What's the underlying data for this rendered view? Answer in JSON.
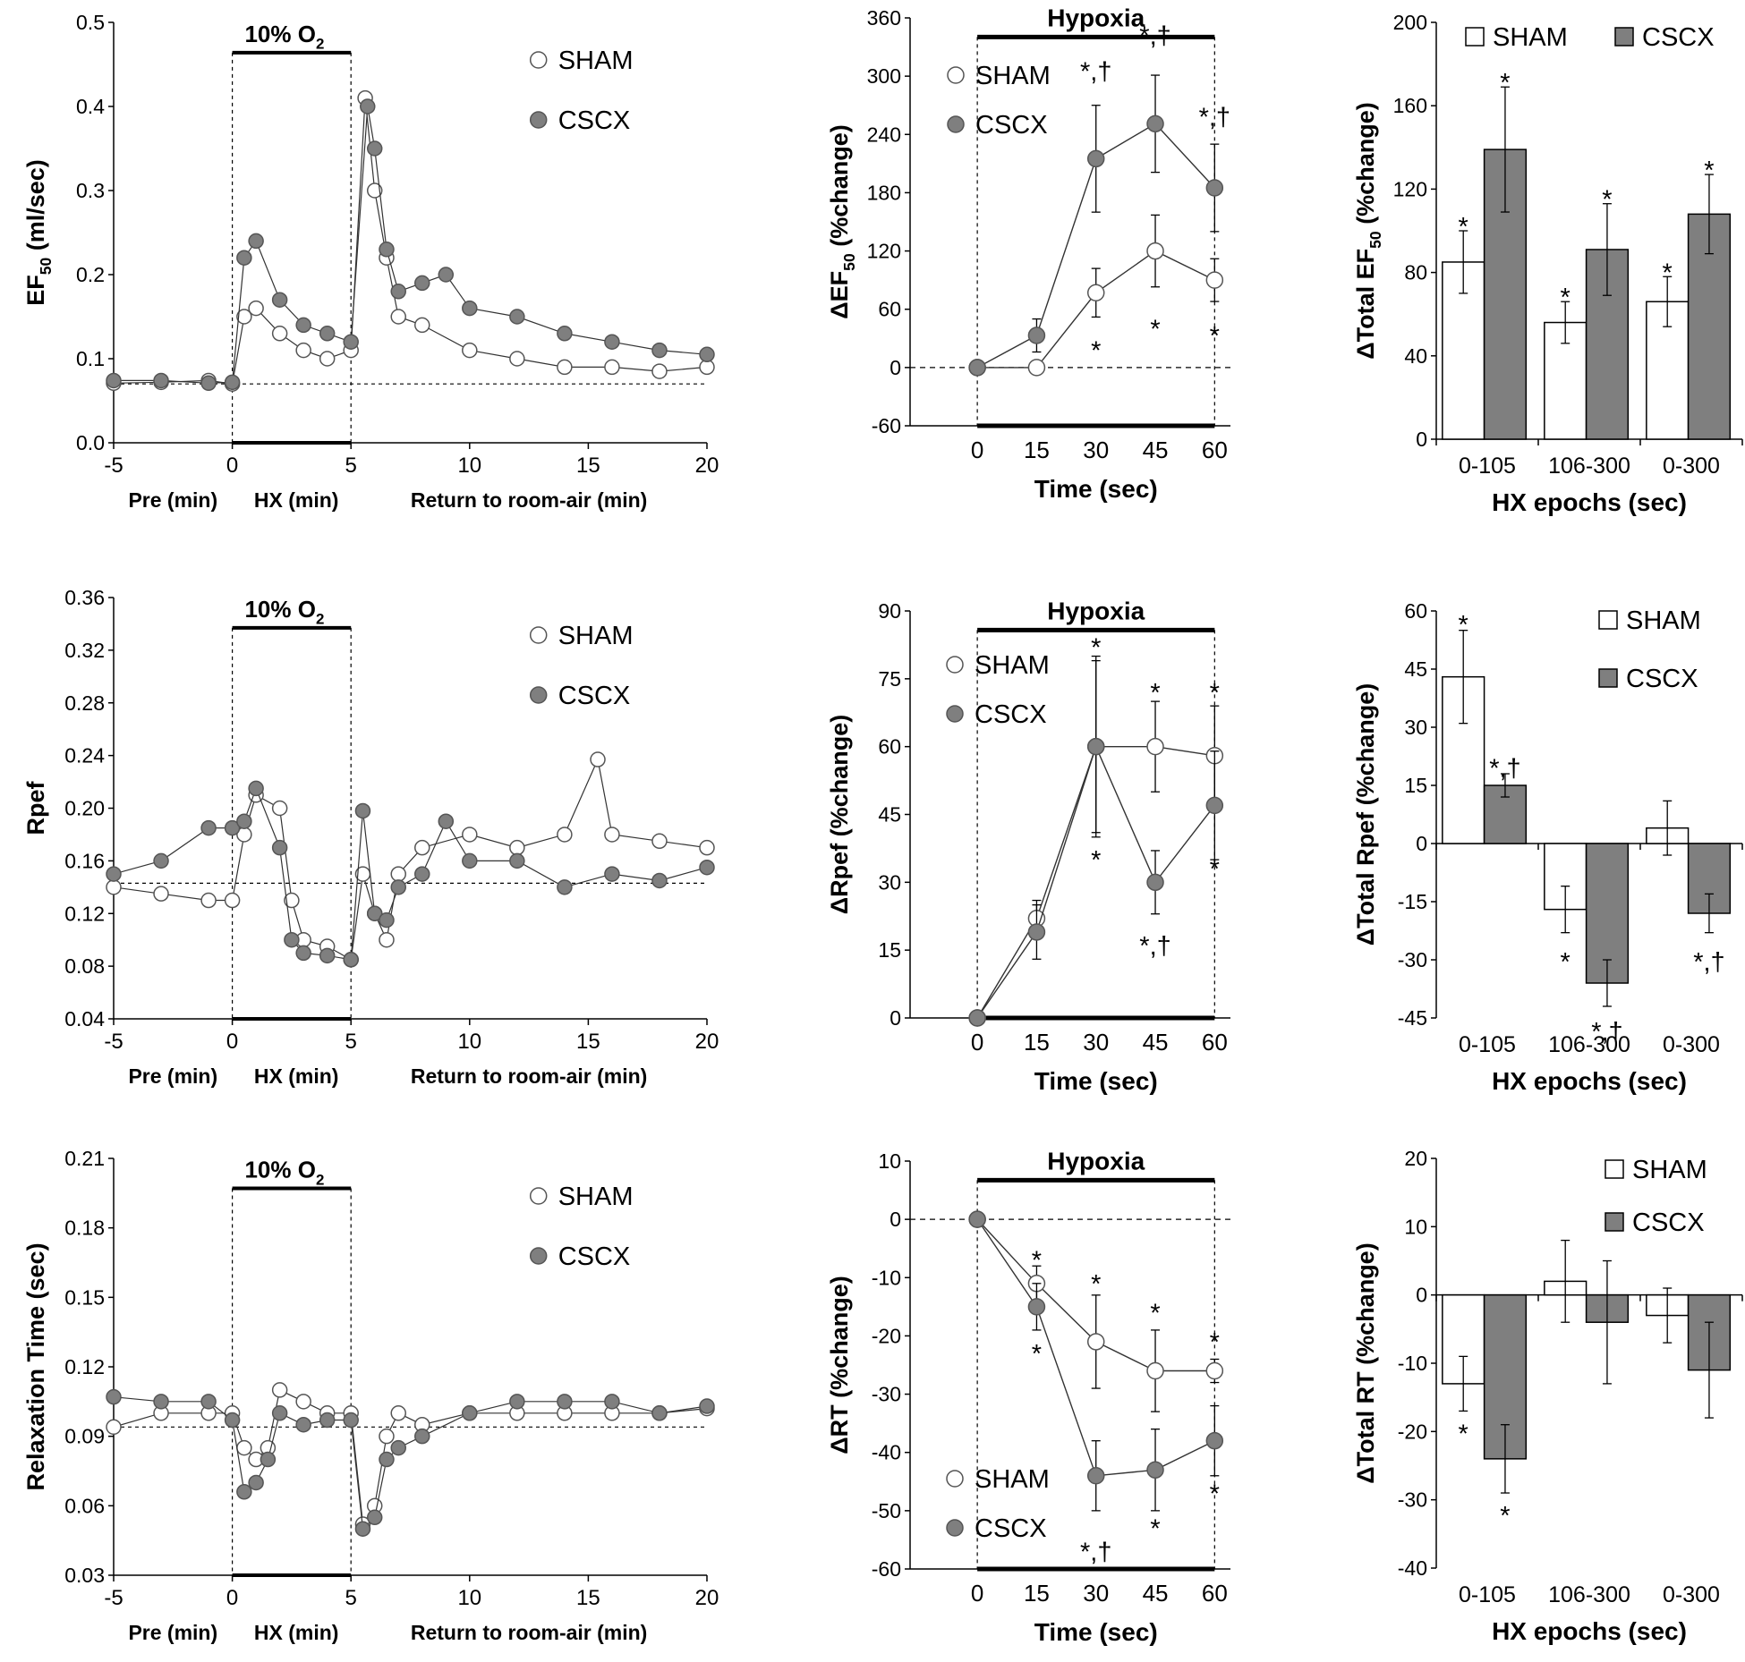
{
  "colors": {
    "sham_fill": "#ffffff",
    "cscx_fill": "#7f7f7f",
    "line": "#000000"
  },
  "chart_data": [
    {
      "id": "ef50_time",
      "type": "scatter",
      "title": "",
      "ylabel_main": "EF",
      "ylabel_sub": "50",
      "ylabel_tail": " (ml/sec)",
      "ylim": [
        0.0,
        0.5
      ],
      "yticks": [
        0.0,
        0.1,
        0.2,
        0.3,
        0.4,
        0.5
      ],
      "ytick_decimals": 1,
      "xlim": [
        -5,
        20
      ],
      "xticks": [
        -5,
        0,
        5,
        10,
        15,
        20
      ],
      "xlabels": [
        "Pre (min)",
        "HX (min)",
        "Return to room-air (min)"
      ],
      "box_label_main": "10% O",
      "box_label_sub": "2",
      "legend": [
        "SHAM",
        "CSCX"
      ],
      "baseline": 0.07,
      "sham": [
        [
          -5,
          0.071
        ],
        [
          -3,
          0.072
        ],
        [
          -1,
          0.074
        ],
        [
          0,
          0.07
        ],
        [
          0.5,
          0.15
        ],
        [
          1,
          0.16
        ],
        [
          2,
          0.13
        ],
        [
          3,
          0.11
        ],
        [
          4,
          0.1
        ],
        [
          5,
          0.11
        ],
        [
          5.6,
          0.41
        ],
        [
          6,
          0.3
        ],
        [
          6.5,
          0.22
        ],
        [
          7,
          0.15
        ],
        [
          8,
          0.14
        ],
        [
          10,
          0.11
        ],
        [
          12,
          0.1
        ],
        [
          14,
          0.09
        ],
        [
          16,
          0.09
        ],
        [
          18,
          0.085
        ],
        [
          20,
          0.09
        ]
      ],
      "cscx": [
        [
          -5,
          0.074
        ],
        [
          -3,
          0.074
        ],
        [
          -1,
          0.071
        ],
        [
          0,
          0.072
        ],
        [
          0.5,
          0.22
        ],
        [
          1,
          0.24
        ],
        [
          2,
          0.17
        ],
        [
          3,
          0.14
        ],
        [
          4,
          0.13
        ],
        [
          5,
          0.12
        ],
        [
          5.7,
          0.4
        ],
        [
          6,
          0.35
        ],
        [
          6.5,
          0.23
        ],
        [
          7,
          0.18
        ],
        [
          8,
          0.19
        ],
        [
          9,
          0.2
        ],
        [
          10,
          0.16
        ],
        [
          12,
          0.15
        ],
        [
          14,
          0.13
        ],
        [
          16,
          0.12
        ],
        [
          18,
          0.11
        ],
        [
          20,
          0.105
        ]
      ]
    },
    {
      "id": "ef50_pct",
      "type": "line",
      "title": "Hypoxia",
      "ylabel_main": "ΔEF",
      "ylabel_sub": "50",
      "ylabel_tail": " (%change)",
      "ylim": [
        -60,
        360
      ],
      "yticks": [
        -60,
        0,
        60,
        120,
        180,
        240,
        300,
        360
      ],
      "x": [
        0,
        15,
        30,
        45,
        60
      ],
      "xlabel": "Time (sec)",
      "legend": [
        "SHAM",
        "CSCX"
      ],
      "series": [
        {
          "name": "SHAM",
          "values": [
            0,
            0,
            77,
            120,
            90
          ],
          "err": [
            0,
            0,
            25,
            37,
            22
          ]
        },
        {
          "name": "CSCX",
          "values": [
            0,
            33,
            215,
            251,
            185
          ],
          "err": [
            0,
            17,
            55,
            50,
            45
          ]
        }
      ],
      "annotations": [
        {
          "x": 30,
          "y": 305,
          "text": "*,†"
        },
        {
          "x": 45,
          "y": 342,
          "text": "*,†"
        },
        {
          "x": 60,
          "y": 258,
          "text": "*,†"
        },
        {
          "x": 30,
          "y": 18,
          "text": "*"
        },
        {
          "x": 45,
          "y": 40,
          "text": "*"
        },
        {
          "x": 60,
          "y": 33,
          "text": "*"
        }
      ]
    },
    {
      "id": "ef50_total",
      "type": "bar",
      "title": "",
      "ylabel_main": "ΔTotal EF",
      "ylabel_sub": "50",
      "ylabel_tail": " (%change)",
      "ylim": [
        0,
        200
      ],
      "yticks": [
        0,
        40,
        80,
        120,
        160,
        200
      ],
      "categories": [
        "0-105",
        "106-300",
        "0-300"
      ],
      "xlabel": "HX epochs (sec)",
      "legend": [
        "SHAM",
        "CSCX"
      ],
      "series": [
        {
          "name": "SHAM",
          "values": [
            85,
            56,
            66
          ],
          "err": [
            15,
            10,
            12
          ]
        },
        {
          "name": "CSCX",
          "values": [
            139,
            91,
            108
          ],
          "err": [
            30,
            22,
            19
          ]
        }
      ],
      "annotations": [
        {
          "x": "0-105",
          "series": "SHAM",
          "y": 103,
          "text": "*"
        },
        {
          "x": "0-105",
          "series": "CSCX",
          "y": 172,
          "text": "*"
        },
        {
          "x": "106-300",
          "series": "SHAM",
          "y": 69,
          "text": "*"
        },
        {
          "x": "106-300",
          "series": "CSCX",
          "y": 116,
          "text": "*"
        },
        {
          "x": "0-300",
          "series": "SHAM",
          "y": 81,
          "text": "*"
        },
        {
          "x": "0-300",
          "series": "CSCX",
          "y": 130,
          "text": "*"
        }
      ]
    },
    {
      "id": "rpef_time",
      "type": "scatter",
      "title": "",
      "ylabel_main": "Rpef",
      "ylabel_sub": "",
      "ylabel_tail": "",
      "ylim": [
        0.04,
        0.36
      ],
      "yticks": [
        0.04,
        0.08,
        0.12,
        0.16,
        0.2,
        0.24,
        0.28,
        0.32,
        0.36
      ],
      "ytick_decimals": 2,
      "xlim": [
        -5,
        20
      ],
      "xticks": [
        -5,
        0,
        5,
        10,
        15,
        20
      ],
      "xlabels": [
        "Pre (min)",
        "HX (min)",
        "Return to room-air (min)"
      ],
      "box_label_main": "10% O",
      "box_label_sub": "2",
      "legend": [
        "SHAM",
        "CSCX"
      ],
      "baseline": 0.143,
      "sham": [
        [
          -5,
          0.14
        ],
        [
          -3,
          0.135
        ],
        [
          -1,
          0.13
        ],
        [
          0,
          0.13
        ],
        [
          0.5,
          0.18
        ],
        [
          1,
          0.21
        ],
        [
          2,
          0.2
        ],
        [
          2.5,
          0.13
        ],
        [
          3,
          0.1
        ],
        [
          4,
          0.095
        ],
        [
          5,
          0.085
        ],
        [
          5.5,
          0.15
        ],
        [
          6,
          0.12
        ],
        [
          6.5,
          0.1
        ],
        [
          7,
          0.15
        ],
        [
          8,
          0.17
        ],
        [
          10,
          0.18
        ],
        [
          12,
          0.17
        ],
        [
          14,
          0.18
        ],
        [
          15.4,
          0.237
        ],
        [
          16,
          0.18
        ],
        [
          18,
          0.175
        ],
        [
          20,
          0.17
        ]
      ],
      "cscx": [
        [
          -5,
          0.15
        ],
        [
          -3,
          0.16
        ],
        [
          -1,
          0.185
        ],
        [
          0,
          0.185
        ],
        [
          0.5,
          0.19
        ],
        [
          1,
          0.215
        ],
        [
          2,
          0.17
        ],
        [
          2.5,
          0.1
        ],
        [
          3,
          0.09
        ],
        [
          4,
          0.088
        ],
        [
          5,
          0.085
        ],
        [
          5.5,
          0.198
        ],
        [
          6,
          0.12
        ],
        [
          6.5,
          0.115
        ],
        [
          7,
          0.14
        ],
        [
          8,
          0.15
        ],
        [
          9,
          0.19
        ],
        [
          10,
          0.16
        ],
        [
          12,
          0.16
        ],
        [
          14,
          0.14
        ],
        [
          16,
          0.15
        ],
        [
          18,
          0.145
        ],
        [
          20,
          0.155
        ]
      ]
    },
    {
      "id": "rpef_pct",
      "type": "line",
      "title": "Hypoxia",
      "ylabel_main": "ΔRpef (%change)",
      "ylabel_sub": "",
      "ylabel_tail": "",
      "ylim": [
        0,
        90
      ],
      "yticks": [
        0,
        15,
        30,
        45,
        60,
        75,
        90
      ],
      "x": [
        0,
        15,
        30,
        45,
        60
      ],
      "xlabel": "Time (sec)",
      "legend": [
        "SHAM",
        "CSCX"
      ],
      "series": [
        {
          "name": "SHAM",
          "values": [
            0,
            22,
            60,
            60,
            58
          ],
          "err": [
            0,
            4,
            20,
            10,
            11
          ]
        },
        {
          "name": "CSCX",
          "values": [
            0,
            19,
            60,
            30,
            47
          ],
          "err": [
            0,
            6,
            19,
            7,
            12
          ]
        }
      ],
      "annotations": [
        {
          "x": 30,
          "y": 82,
          "text": "*"
        },
        {
          "x": 45,
          "y": 72,
          "text": "*"
        },
        {
          "x": 60,
          "y": 72,
          "text": "*"
        },
        {
          "x": 30,
          "y": 35,
          "text": "*"
        },
        {
          "x": 45,
          "y": 16,
          "text": "*,†"
        },
        {
          "x": 60,
          "y": 33,
          "text": "*"
        }
      ]
    },
    {
      "id": "rpef_total",
      "type": "bar",
      "title": "",
      "ylabel_main": "ΔTotal Rpef (%change)",
      "ylabel_sub": "",
      "ylabel_tail": "",
      "ylim": [
        -45,
        60
      ],
      "yticks": [
        -45,
        -30,
        -15,
        0,
        15,
        30,
        45,
        60
      ],
      "categories": [
        "0-105",
        "106-300",
        "0-300"
      ],
      "xlabel": "HX epochs (sec)",
      "legend": [
        "SHAM",
        "CSCX"
      ],
      "series": [
        {
          "name": "SHAM",
          "values": [
            43,
            -17,
            4
          ],
          "err": [
            12,
            6,
            7
          ]
        },
        {
          "name": "CSCX",
          "values": [
            15,
            -36,
            -18
          ],
          "err": [
            3,
            6,
            5
          ]
        }
      ],
      "annotations": [
        {
          "x": "0-105",
          "series": "SHAM",
          "y": 57,
          "text": "*"
        },
        {
          "x": "0-105",
          "series": "CSCX",
          "y": 20,
          "text": "*,†"
        },
        {
          "x": "106-300",
          "series": "SHAM",
          "y": -30,
          "text": "*"
        },
        {
          "x": "106-300",
          "series": "CSCX",
          "y": -48,
          "text": "*,†"
        },
        {
          "x": "0-300",
          "series": "CSCX",
          "y": -30,
          "text": "*,†"
        }
      ]
    },
    {
      "id": "rt_time",
      "type": "scatter",
      "title": "",
      "ylabel_main": "Relaxation Time (sec)",
      "ylabel_sub": "",
      "ylabel_tail": "",
      "ylim": [
        0.03,
        0.21
      ],
      "yticks": [
        0.03,
        0.06,
        0.09,
        0.12,
        0.15,
        0.18,
        0.21
      ],
      "ytick_decimals": 2,
      "xlim": [
        -5,
        20
      ],
      "xticks": [
        -5,
        0,
        5,
        10,
        15,
        20
      ],
      "xlabels": [
        "Pre (min)",
        "HX (min)",
        "Return to room-air (min)"
      ],
      "box_label_main": "10% O",
      "box_label_sub": "2",
      "legend": [
        "SHAM",
        "CSCX"
      ],
      "baseline": 0.094,
      "sham": [
        [
          -5,
          0.094
        ],
        [
          -3,
          0.1
        ],
        [
          -1,
          0.1
        ],
        [
          0,
          0.1
        ],
        [
          0.5,
          0.085
        ],
        [
          1,
          0.08
        ],
        [
          1.5,
          0.085
        ],
        [
          2,
          0.11
        ],
        [
          3,
          0.105
        ],
        [
          4,
          0.1
        ],
        [
          5,
          0.1
        ],
        [
          5.5,
          0.052
        ],
        [
          6,
          0.06
        ],
        [
          6.5,
          0.09
        ],
        [
          7,
          0.1
        ],
        [
          8,
          0.095
        ],
        [
          10,
          0.1
        ],
        [
          12,
          0.1
        ],
        [
          14,
          0.1
        ],
        [
          16,
          0.1
        ],
        [
          18,
          0.1
        ],
        [
          20,
          0.102
        ]
      ],
      "cscx": [
        [
          -5,
          0.107
        ],
        [
          -3,
          0.105
        ],
        [
          -1,
          0.105
        ],
        [
          0,
          0.097
        ],
        [
          0.5,
          0.066
        ],
        [
          1,
          0.07
        ],
        [
          1.5,
          0.08
        ],
        [
          2,
          0.1
        ],
        [
          3,
          0.095
        ],
        [
          4,
          0.097
        ],
        [
          5,
          0.097
        ],
        [
          5.5,
          0.05
        ],
        [
          6,
          0.055
        ],
        [
          6.5,
          0.08
        ],
        [
          7,
          0.085
        ],
        [
          8,
          0.09
        ],
        [
          10,
          0.1
        ],
        [
          12,
          0.105
        ],
        [
          14,
          0.105
        ],
        [
          16,
          0.105
        ],
        [
          18,
          0.1
        ],
        [
          20,
          0.103
        ]
      ]
    },
    {
      "id": "rt_pct",
      "type": "line",
      "title": "Hypoxia",
      "ylabel_main": "ΔRT (%change)",
      "ylabel_sub": "",
      "ylabel_tail": "",
      "ylim": [
        -60,
        10
      ],
      "yticks": [
        -60,
        -50,
        -40,
        -30,
        -20,
        -10,
        0,
        10
      ],
      "x": [
        0,
        15,
        30,
        45,
        60
      ],
      "xlabel": "Time (sec)",
      "legend": [
        "SHAM",
        "CSCX"
      ],
      "series": [
        {
          "name": "SHAM",
          "values": [
            0,
            -11,
            -21,
            -26,
            -26
          ],
          "err": [
            0,
            3,
            8,
            7,
            2
          ]
        },
        {
          "name": "CSCX",
          "values": [
            0,
            -15,
            -44,
            -43,
            -38
          ],
          "err": [
            0,
            4,
            6,
            7,
            6
          ]
        }
      ],
      "annotations": [
        {
          "x": 15,
          "y": -7,
          "text": "*"
        },
        {
          "x": 30,
          "y": -11,
          "text": "*"
        },
        {
          "x": 45,
          "y": -16,
          "text": "*"
        },
        {
          "x": 60,
          "y": -21,
          "text": "*"
        },
        {
          "x": 15,
          "y": -23,
          "text": "*"
        },
        {
          "x": 30,
          "y": -57,
          "text": "*,†"
        },
        {
          "x": 45,
          "y": -53,
          "text": "*"
        },
        {
          "x": 60,
          "y": -47,
          "text": "*"
        }
      ]
    },
    {
      "id": "rt_total",
      "type": "bar",
      "title": "",
      "ylabel_main": "ΔTotal RT (%change)",
      "ylabel_sub": "",
      "ylabel_tail": "",
      "ylim": [
        -40,
        20
      ],
      "yticks": [
        -40,
        -30,
        -20,
        -10,
        0,
        10,
        20
      ],
      "categories": [
        "0-105",
        "106-300",
        "0-300"
      ],
      "xlabel": "HX epochs (sec)",
      "legend": [
        "SHAM",
        "CSCX"
      ],
      "series": [
        {
          "name": "SHAM",
          "values": [
            -13,
            2,
            -3
          ],
          "err": [
            4,
            6,
            4
          ]
        },
        {
          "name": "CSCX",
          "values": [
            -24,
            -4,
            -11
          ],
          "err": [
            5,
            9,
            7
          ]
        }
      ],
      "annotations": [
        {
          "x": "0-105",
          "series": "SHAM",
          "y": -20,
          "text": "*"
        },
        {
          "x": "0-105",
          "series": "CSCX",
          "y": -32,
          "text": "*"
        }
      ]
    }
  ]
}
